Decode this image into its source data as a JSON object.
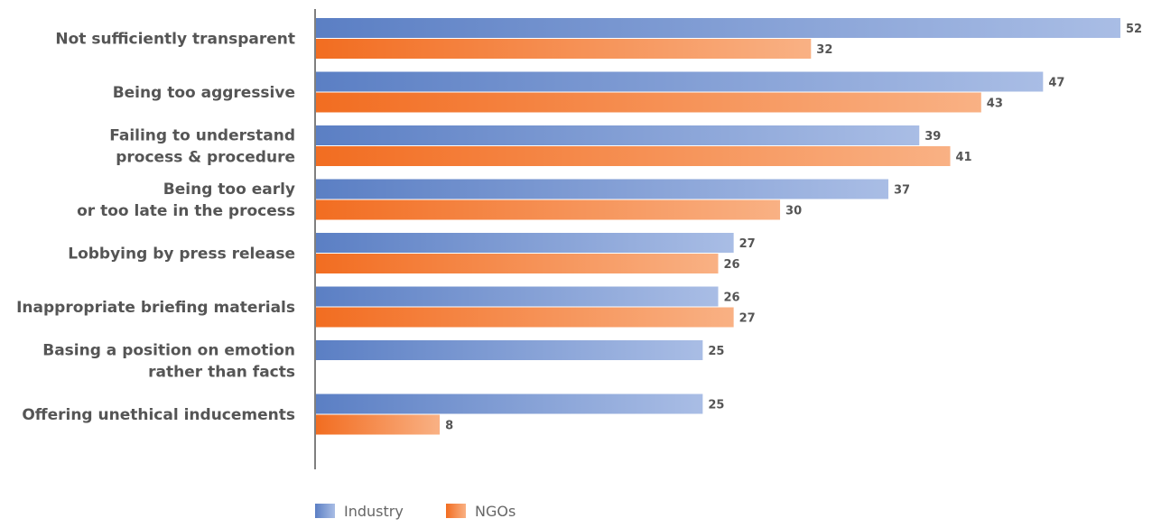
{
  "chart_data": {
    "type": "bar",
    "orientation": "horizontal",
    "categories": [
      "Not sufficiently transparent",
      "Being too aggressive",
      "Failing to understand process & procedure",
      "Being too early or too late in the process",
      "Lobbying by press release",
      "Inappropriate briefing materials",
      "Basing a position on emotion rather than facts",
      "Offering unethical inducements"
    ],
    "category_lines": [
      [
        "Not sufficiently transparent"
      ],
      [
        "Being too aggressive"
      ],
      [
        "Failing to understand",
        "process & procedure"
      ],
      [
        "Being too early",
        "or too late in the process"
      ],
      [
        "Lobbying by press release"
      ],
      [
        "Inappropriate briefing materials"
      ],
      [
        "Basing a position on emotion",
        "rather than facts"
      ],
      [
        "Offering unethical inducements"
      ]
    ],
    "series": [
      {
        "name": "Industry",
        "color": "#5b7fc4",
        "color_light": "#a9bde5",
        "values": [
          52,
          47,
          39,
          37,
          27,
          26,
          25,
          25
        ]
      },
      {
        "name": "NGOs",
        "color": "#f26d21",
        "color_light": "#f9b184",
        "values": [
          32,
          43,
          41,
          30,
          26,
          27,
          null,
          8
        ]
      }
    ],
    "xlim": [
      0,
      52
    ],
    "grid": false,
    "legend_position": "bottom"
  }
}
